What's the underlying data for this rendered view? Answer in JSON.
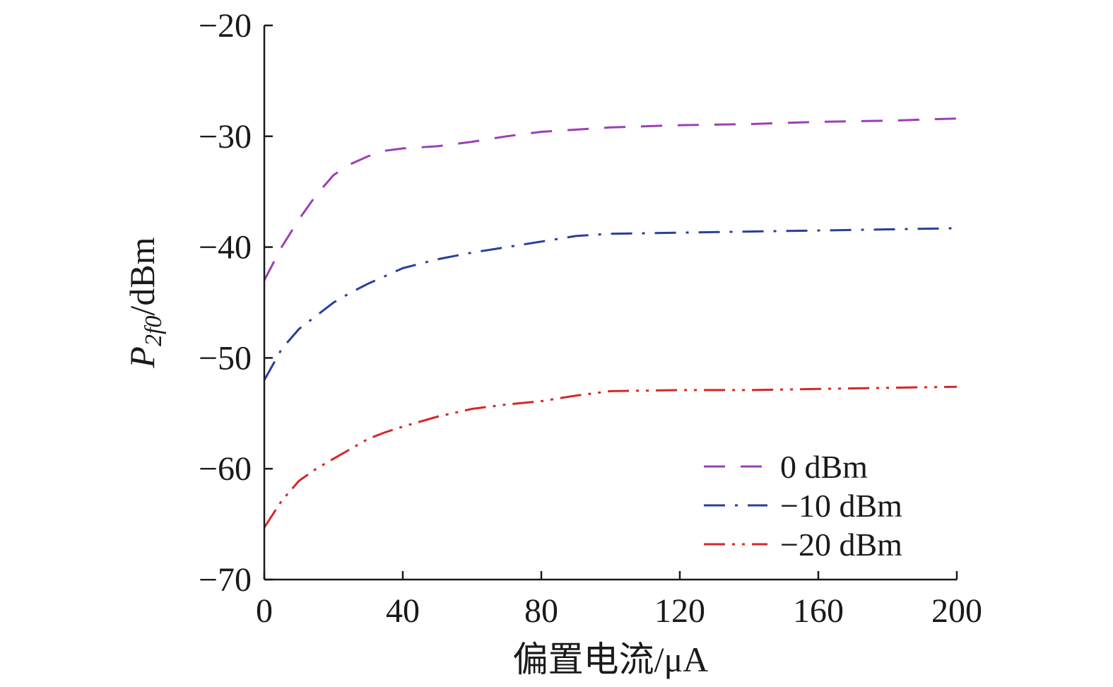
{
  "chart_data": {
    "type": "line",
    "xlabel": "偏置电流/μA",
    "ylabel": {
      "main": "P",
      "sub": "2f0",
      "unit": "/dBm"
    },
    "xlim": [
      0,
      200
    ],
    "ylim": [
      -70,
      -20
    ],
    "xticks": [
      0,
      40,
      80,
      120,
      160,
      200
    ],
    "yticks": [
      -20,
      -30,
      -40,
      -50,
      -60,
      -70
    ],
    "xtick_labels": [
      "0",
      "40",
      "80",
      "120",
      "160",
      "200"
    ],
    "ytick_labels": [
      "−20",
      "−30",
      "−40",
      "−50",
      "−60",
      "−70"
    ],
    "grid": false,
    "legend_position": "bottom-right",
    "series": [
      {
        "name": "0 dBm",
        "color": "#9b3fb5",
        "dash": "dash",
        "x": [
          0,
          5,
          10,
          15,
          20,
          25,
          30,
          35,
          40,
          50,
          60,
          70,
          80,
          90,
          100,
          120,
          140,
          160,
          180,
          200
        ],
        "y": [
          -43.0,
          -40.0,
          -37.5,
          -35.3,
          -33.5,
          -32.5,
          -31.8,
          -31.3,
          -31.1,
          -30.9,
          -30.5,
          -30.0,
          -29.6,
          -29.4,
          -29.2,
          -29.0,
          -28.9,
          -28.7,
          -28.6,
          -28.4
        ]
      },
      {
        "name": "−10 dBm",
        "color": "#2a3f9a",
        "dash": "dashdot",
        "x": [
          0,
          5,
          10,
          15,
          20,
          25,
          30,
          35,
          40,
          50,
          60,
          70,
          80,
          90,
          100,
          120,
          140,
          160,
          180,
          200
        ],
        "y": [
          -52.0,
          -49.2,
          -47.4,
          -46.2,
          -45.0,
          -44.1,
          -43.3,
          -42.6,
          -41.9,
          -41.1,
          -40.5,
          -40.0,
          -39.5,
          -39.0,
          -38.8,
          -38.7,
          -38.6,
          -38.5,
          -38.4,
          -38.3
        ]
      },
      {
        "name": "−20 dBm",
        "color": "#d62728",
        "dash": "dashdotdot",
        "x": [
          0,
          5,
          10,
          15,
          20,
          25,
          30,
          35,
          40,
          50,
          60,
          70,
          80,
          90,
          100,
          120,
          140,
          160,
          180,
          200
        ],
        "y": [
          -65.3,
          -62.9,
          -61.1,
          -60.0,
          -59.1,
          -58.2,
          -57.3,
          -56.7,
          -56.2,
          -55.3,
          -54.6,
          -54.2,
          -53.9,
          -53.4,
          -53.0,
          -52.9,
          -52.9,
          -52.8,
          -52.7,
          -52.6
        ]
      }
    ]
  }
}
